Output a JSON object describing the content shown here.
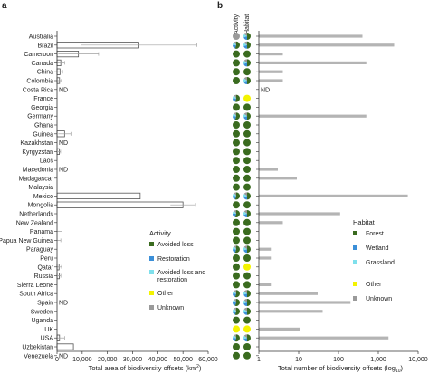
{
  "panels": [
    {
      "label": "a",
      "chart_data": {
        "type": "bar",
        "orientation": "horizontal",
        "xlabel": "Total area of biodiversity offsets (km",
        "xlabel_sup": "2",
        "xlabel_end": ")",
        "xlim": [
          0,
          60000
        ],
        "xticks": [
          0,
          10000,
          20000,
          30000,
          40000,
          50000,
          60000
        ],
        "xtick_labels": [
          "0",
          "10,000",
          "20,000",
          "30,000",
          "40,000",
          "50,000",
          "60,000"
        ],
        "categories": [
          "Australia",
          "Brazil",
          "Cameroon",
          "Canada",
          "China",
          "Colombia",
          "Costa Rica",
          "France",
          "Georgia",
          "Germany",
          "Ghana",
          "Guinea",
          "Kazakhstan",
          "Kyrgyzstan",
          "Laos",
          "Macedonia",
          "Madagascar",
          "Malaysia",
          "Mexico",
          "Mongolia",
          "Netherlands",
          "New Zealand",
          "Panama",
          "Papua New Guinea",
          "Paraguay",
          "Peru",
          "Qatar",
          "Russia",
          "Sierra Leone",
          "South Africa",
          "Spain",
          "Sweden",
          "Uganda",
          "UK",
          "USA",
          "Uzbekistan",
          "Venezuela"
        ],
        "values": [
          0,
          32500,
          8500,
          1500,
          1200,
          1000,
          null,
          0,
          0,
          0,
          0,
          3000,
          null,
          900,
          0,
          null,
          0,
          0,
          33000,
          50000,
          0,
          0,
          0,
          0,
          0,
          0,
          800,
          900,
          0,
          0,
          null,
          0,
          0,
          0,
          1000,
          6500,
          null
        ],
        "error": [
          0,
          23000,
          8000,
          1500,
          1000,
          800,
          null,
          0,
          0,
          0,
          0,
          2500,
          null,
          500,
          0,
          null,
          0,
          0,
          0,
          5000,
          0,
          0,
          2000,
          1500,
          0,
          0,
          1000,
          600,
          0,
          0,
          null,
          0,
          0,
          0,
          2000,
          0,
          null
        ],
        "nd_marker": "ND",
        "nd_categories": [
          "Costa Rica",
          "Kazakhstan",
          "Macedonia",
          "Spain",
          "Venezuela"
        ]
      },
      "legend": {
        "title": "Activity",
        "items": [
          {
            "label": "Avoided loss",
            "color": "#3a6b1f"
          },
          {
            "label": "Restoration",
            "color": "#3b8fd8"
          },
          {
            "label": "Avoided loss and restoration",
            "color": "#7fe0ec"
          },
          {
            "label": "Other",
            "color": "#f3f300"
          },
          {
            "label": "Unknown",
            "color": "#9a9a9a"
          }
        ]
      }
    },
    {
      "label": "b",
      "column_headers": [
        "Activity",
        "Habitat"
      ],
      "chart_data": {
        "type": "bar",
        "orientation": "horizontal",
        "xscale": "log",
        "xlabel": "Total number of biodiversity offsets (log",
        "xlabel_sub": "10",
        "xlabel_end": ")",
        "xlim": [
          1,
          10000
        ],
        "xticks": [
          1,
          10,
          100,
          1000,
          10000
        ],
        "xtick_labels": [
          "1",
          "10",
          "100",
          "1,000",
          "10,000"
        ],
        "categories": [
          "Australia",
          "Brazil",
          "Cameroon",
          "Canada",
          "China",
          "Colombia",
          "Costa Rica",
          "France",
          "Georgia",
          "Germany",
          "Ghana",
          "Guinea",
          "Kazakhstan",
          "Kyrgyzstan",
          "Laos",
          "Macedonia",
          "Madagascar",
          "Malaysia",
          "Mexico",
          "Mongolia",
          "Netherlands",
          "New Zealand",
          "Panama",
          "Papua New Guinea",
          "Paraguay",
          "Peru",
          "Qatar",
          "Russia",
          "Sierra Leone",
          "South Africa",
          "Spain",
          "Sweden",
          "Uganda",
          "UK",
          "USA",
          "Uzbekistan",
          "Venezuela"
        ],
        "values": [
          400,
          2500,
          4,
          500,
          4,
          4,
          null,
          1,
          1,
          500,
          1,
          1,
          1,
          1,
          1,
          3,
          9,
          1,
          5500,
          1,
          110,
          4,
          1,
          1,
          2,
          2,
          1,
          1,
          2,
          30,
          200,
          40,
          1,
          11,
          1800,
          1,
          1
        ],
        "nd_marker": "ND",
        "nd_categories": [
          "Costa Rica"
        ],
        "activity": [
          "unknown",
          "mixed",
          "avoided",
          "avoided",
          "avoided",
          "avoided",
          "none",
          "mixed",
          "avoided",
          "mixed",
          "avoided",
          "avoided",
          "avoided",
          "avoided",
          "avoided",
          "avoided",
          "avoided",
          "avoided",
          "mixed",
          "avoided",
          "mixed",
          "avoided",
          "avoided",
          "avoided",
          "mixed",
          "avoided",
          "avoided",
          "avoided",
          "avoided",
          "mixed",
          "mixed",
          "mixed",
          "avoided",
          "other",
          "mixed",
          "avoided",
          "avoided"
        ],
        "habitat": [
          "mixed",
          "mixed",
          "forest",
          "mixed",
          "forest",
          "mixed",
          "none",
          "other",
          "forest",
          "mixed",
          "forest",
          "forest",
          "forest",
          "forest",
          "forest",
          "forest",
          "forest",
          "forest",
          "mixed",
          "forest",
          "mixed",
          "forest",
          "forest",
          "forest",
          "mixed",
          "forest",
          "other",
          "forest",
          "forest",
          "mixed",
          "mixed",
          "mixed",
          "forest",
          "other",
          "mixed",
          "forest",
          "forest"
        ]
      },
      "legend": {
        "title": "Habitat",
        "items": [
          {
            "label": "Forest",
            "color": "#3a6b1f"
          },
          {
            "label": "Wetland",
            "color": "#3b8fd8"
          },
          {
            "label": "Grassland",
            "color": "#7fe0ec"
          },
          {
            "label": "Other",
            "color": "#f3f300"
          },
          {
            "label": "Unknown",
            "color": "#9a9a9a"
          }
        ]
      }
    }
  ],
  "colors": {
    "bar_a_fill": "#ffffff",
    "bar_a_stroke": "#555555",
    "bar_b_fill": "#b4b4b4",
    "error_bar": "#a0a0a0",
    "axis": "#333333"
  }
}
